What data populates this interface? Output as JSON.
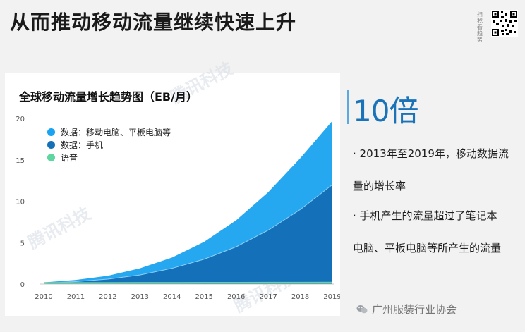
{
  "page": {
    "title": "从而推动移动流量继续快速上升"
  },
  "qr_block": {
    "label": "扫我看趋势"
  },
  "chart_data": {
    "type": "area",
    "title": "全球移动流量增长趋势图（EB/月）",
    "x": [
      2010,
      2011,
      2012,
      2013,
      2014,
      2015,
      2016,
      2017,
      2018,
      2019
    ],
    "x_tick_labels": [
      "2010",
      "2011",
      "2012",
      "2013",
      "2014",
      "2015",
      "2016",
      "2017",
      "2018",
      "2019"
    ],
    "y_tick_labels": [
      "0",
      "5",
      "10",
      "15",
      "20"
    ],
    "ylim": [
      0,
      20
    ],
    "stacked": true,
    "legend_position": "top-left",
    "series": [
      {
        "name": "数据：移动电脑、平板电脑等",
        "color": "#1aa3f0",
        "values": [
          0.1,
          0.2,
          0.4,
          0.8,
          1.3,
          2.1,
          3.2,
          4.6,
          6.2,
          7.7
        ]
      },
      {
        "name": "数据：手机",
        "color": "#1470b8",
        "values": [
          0.1,
          0.3,
          0.6,
          1.1,
          1.9,
          3.0,
          4.5,
          6.5,
          9.0,
          12.0
        ]
      },
      {
        "name": "语音",
        "color": "#5dd6a0",
        "values": [
          0.15,
          0.15,
          0.15,
          0.16,
          0.16,
          0.17,
          0.17,
          0.18,
          0.18,
          0.19
        ]
      }
    ],
    "watermarks": [
      "腾讯科技",
      "腾讯科技",
      "腾讯科技"
    ]
  },
  "highlight": {
    "value": "10倍",
    "bullets": [
      "· 2013年至2019年，移动数据流",
      "量的增长率",
      "· 手机产生的流量超过了笔记本",
      "电脑、平板电脑等所产生的流量"
    ]
  },
  "footer": {
    "text": "广州服装行业协会"
  }
}
